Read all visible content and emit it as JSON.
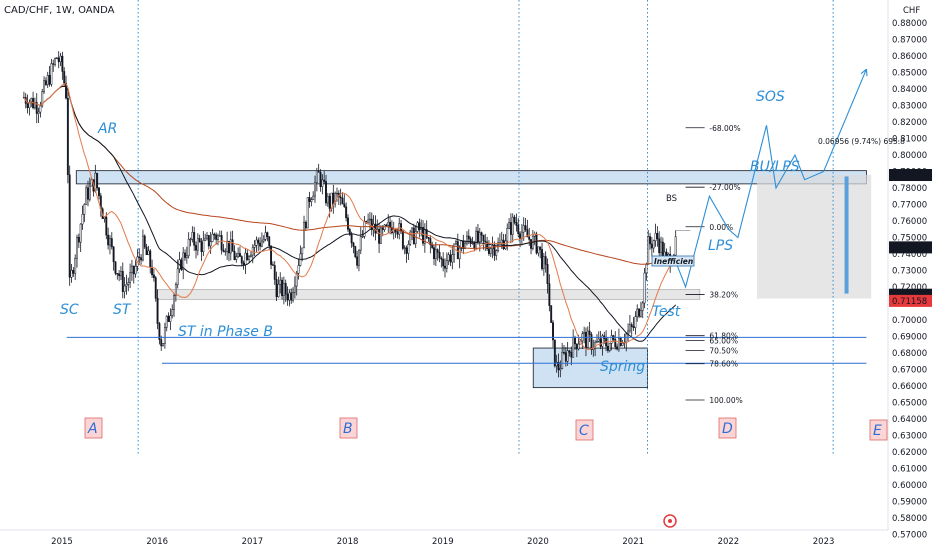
{
  "header": {
    "title": "CAD/CHF, 1W, OANDA"
  },
  "chart_data": {
    "type": "candlestick",
    "currency": "CHF",
    "x_ticks": [
      "2015",
      "2016",
      "2017",
      "2018",
      "2019",
      "2020",
      "2021",
      "2022",
      "2023"
    ],
    "y_ticks": [
      "0.88000",
      "0.86000",
      "0.84000",
      "0.82000",
      "0.80000",
      "0.78000",
      "0.76000",
      "0.74000",
      "0.72000",
      "0.70000",
      "0.68000",
      "0.66000",
      "0.64000",
      "0.62000",
      "0.60000",
      "0.58000"
    ],
    "y_ticks_mid": [
      "0.87000",
      "0.85000",
      "0.83000",
      "0.81000",
      "0.79000",
      "0.77000",
      "0.75000",
      "0.73000",
      "0.71000",
      "0.69000",
      "0.67000",
      "0.65000",
      "0.63000",
      "0.61000",
      "0.59000",
      "0.57000"
    ],
    "ylim": [
      0.5715,
      0.8895
    ],
    "xlim": [
      2014.6,
      2023.95
    ],
    "price_labels": [
      {
        "value": "0.78787",
        "color": "#131722"
      },
      {
        "value": "0.74402",
        "color": "#131722"
      },
      {
        "value": "0.71533",
        "color": "#131722"
      },
      {
        "value": "0.71158",
        "color": "#e5393c"
      }
    ],
    "fib_levels": [
      {
        "label": "-68.00%",
        "price": 0.8165
      },
      {
        "label": "-27.00%",
        "price": 0.7805
      },
      {
        "label": "0.00%",
        "price": 0.7565
      },
      {
        "label": "38.20%",
        "price": 0.7155
      },
      {
        "label": "61.80%",
        "price": 0.6905
      },
      {
        "label": "65.00%",
        "price": 0.6875
      },
      {
        "label": "70.50%",
        "price": 0.6815
      },
      {
        "label": "78.60%",
        "price": 0.6735
      },
      {
        "label": "100.00%",
        "price": 0.6515
      }
    ],
    "measure_label": "0.06956 (9.74%) 695.8",
    "annotations": [
      "SC",
      "ST",
      "AR",
      "ST in Phase B",
      "Spring",
      "Test",
      "LPS",
      "BU/LPS",
      "SOS"
    ],
    "phases": [
      "A",
      "B",
      "C",
      "D",
      "E"
    ],
    "tiny_labels": [
      "BS",
      "Inefficien"
    ],
    "price_path": [
      [
        2014.6,
        0.835
      ],
      [
        2014.75,
        0.83
      ],
      [
        2014.85,
        0.845
      ],
      [
        2014.95,
        0.86
      ],
      [
        2015.0,
        0.852
      ],
      [
        2015.05,
        0.835
      ],
      [
        2015.08,
        0.72
      ],
      [
        2015.15,
        0.745
      ],
      [
        2015.25,
        0.775
      ],
      [
        2015.35,
        0.785
      ],
      [
        2015.45,
        0.76
      ],
      [
        2015.55,
        0.735
      ],
      [
        2015.65,
        0.72
      ],
      [
        2015.75,
        0.728
      ],
      [
        2015.85,
        0.745
      ],
      [
        2015.95,
        0.73
      ],
      [
        2016.0,
        0.7
      ],
      [
        2016.05,
        0.685
      ],
      [
        2016.15,
        0.71
      ],
      [
        2016.25,
        0.735
      ],
      [
        2016.35,
        0.748
      ],
      [
        2016.5,
        0.745
      ],
      [
        2016.6,
        0.752
      ],
      [
        2016.75,
        0.745
      ],
      [
        2016.85,
        0.735
      ],
      [
        2017.0,
        0.745
      ],
      [
        2017.15,
        0.75
      ],
      [
        2017.25,
        0.72
      ],
      [
        2017.4,
        0.715
      ],
      [
        2017.5,
        0.74
      ],
      [
        2017.6,
        0.775
      ],
      [
        2017.7,
        0.788
      ],
      [
        2017.8,
        0.77
      ],
      [
        2017.9,
        0.775
      ],
      [
        2018.0,
        0.76
      ],
      [
        2018.1,
        0.738
      ],
      [
        2018.2,
        0.76
      ],
      [
        2018.35,
        0.75
      ],
      [
        2018.5,
        0.76
      ],
      [
        2018.6,
        0.745
      ],
      [
        2018.75,
        0.755
      ],
      [
        2018.9,
        0.742
      ],
      [
        2019.0,
        0.735
      ],
      [
        2019.1,
        0.74
      ],
      [
        2019.3,
        0.75
      ],
      [
        2019.45,
        0.745
      ],
      [
        2019.6,
        0.745
      ],
      [
        2019.75,
        0.76
      ],
      [
        2019.85,
        0.752
      ],
      [
        2020.0,
        0.745
      ],
      [
        2020.1,
        0.725
      ],
      [
        2020.15,
        0.685
      ],
      [
        2020.2,
        0.67
      ],
      [
        2020.3,
        0.68
      ],
      [
        2020.45,
        0.69
      ],
      [
        2020.6,
        0.685
      ],
      [
        2020.75,
        0.686
      ],
      [
        2020.9,
        0.69
      ],
      [
        2021.0,
        0.695
      ],
      [
        2021.1,
        0.715
      ],
      [
        2021.15,
        0.745
      ],
      [
        2021.25,
        0.75
      ],
      [
        2021.35,
        0.735
      ],
      [
        2021.45,
        0.745
      ]
    ],
    "projection_path": [
      [
        2021.45,
        0.735
      ],
      [
        2021.55,
        0.72
      ],
      [
        2021.8,
        0.775
      ],
      [
        2022.0,
        0.755
      ],
      [
        2022.1,
        0.75
      ],
      [
        2022.4,
        0.818
      ],
      [
        2022.5,
        0.78
      ],
      [
        2022.7,
        0.8
      ],
      [
        2022.8,
        0.785
      ],
      [
        2023.0,
        0.79
      ],
      [
        2023.45,
        0.852
      ]
    ]
  }
}
